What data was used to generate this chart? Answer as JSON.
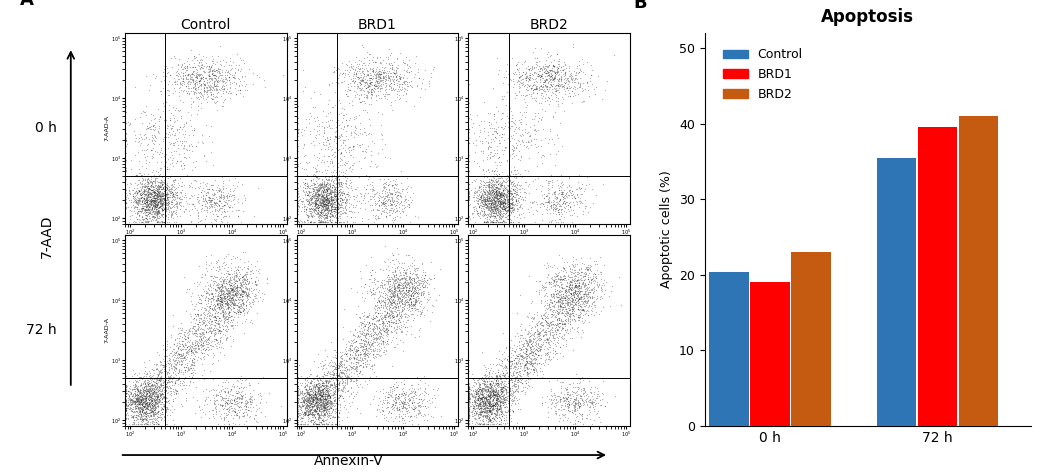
{
  "title_B": "Apoptosis",
  "ylabel_B": "Apoptotic cells (%)",
  "xlabel_groups": [
    "0 h",
    "72 h"
  ],
  "series": {
    "Control": {
      "color": "#2e75b6",
      "values_0h": 20.3,
      "values_72h": 35.5
    },
    "BRD1": {
      "color": "#ff0000",
      "values_0h": 19.0,
      "values_72h": 39.5
    },
    "BRD2": {
      "color": "#c55a11",
      "values_0h": 23.0,
      "values_72h": 41.0
    }
  },
  "ylim": [
    0,
    52
  ],
  "yticks": [
    0,
    10,
    20,
    30,
    40,
    50
  ],
  "label_A": "A",
  "label_B": "B",
  "col_labels": [
    "Control",
    "BRD1",
    "BRD2"
  ],
  "row_labels": [
    "0 h",
    "72 h"
  ],
  "ylabel_A": "7-AAD",
  "xlabel_A": "Annexin-V",
  "bar_width": 0.22,
  "legend_labels": [
    "Control",
    "BRD1",
    "BRD2"
  ],
  "legend_colors": [
    "#2e75b6",
    "#ff0000",
    "#c55a11"
  ],
  "bg_color": "#ffffff",
  "scatter_color": "#222222",
  "scatter_alpha": 0.35,
  "n_points_0h": 2500,
  "n_points_72h": 3500
}
